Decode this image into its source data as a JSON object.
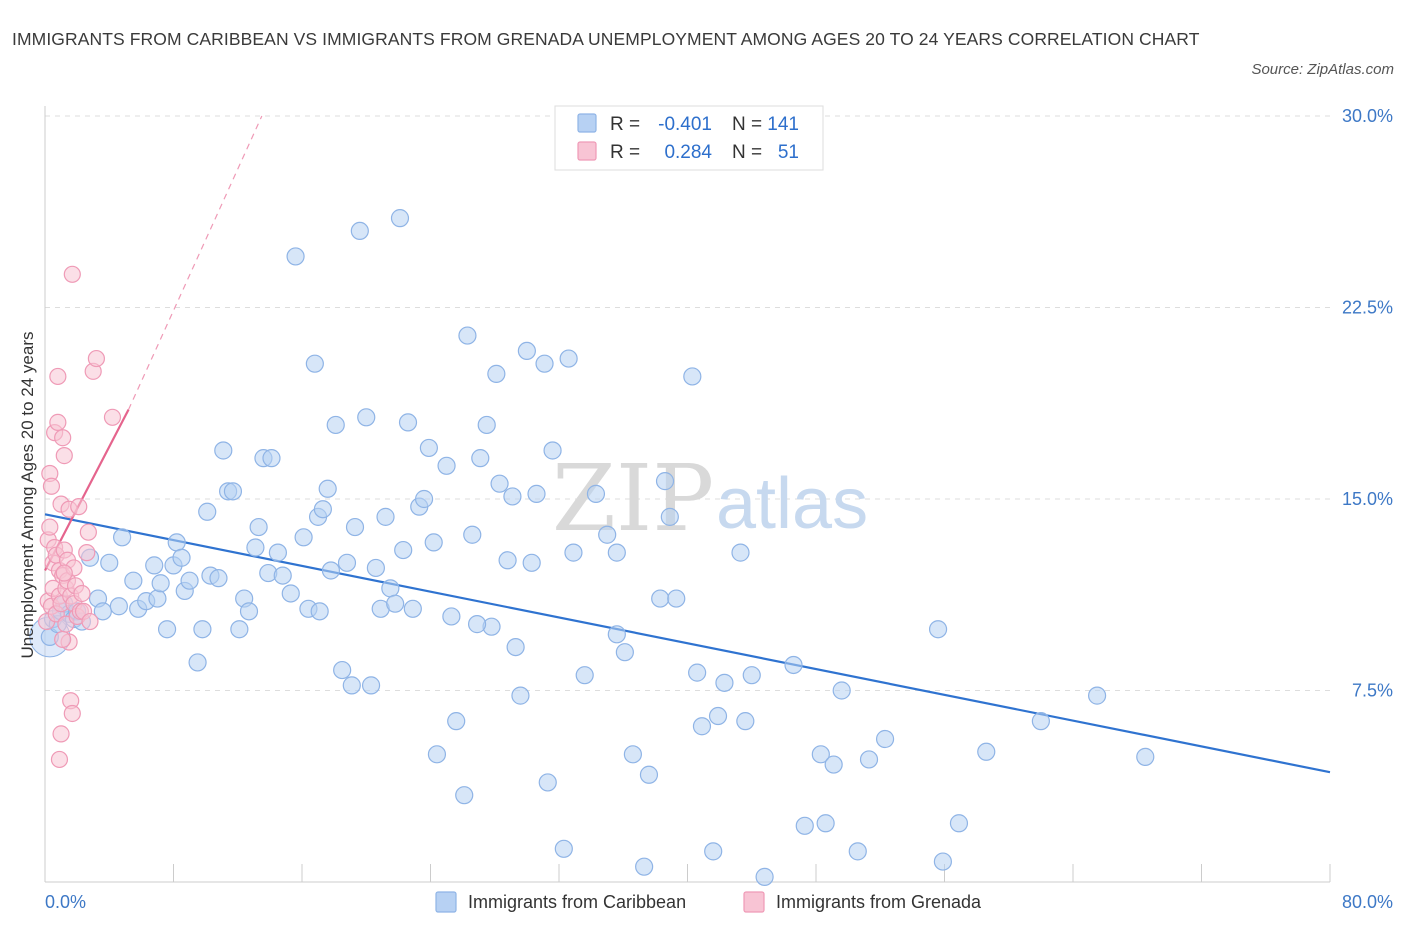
{
  "header": {
    "title": "IMMIGRANTS FROM CARIBBEAN VS IMMIGRANTS FROM GRENADA UNEMPLOYMENT AMONG AGES 20 TO 24 YEARS CORRELATION CHART",
    "source": "Source: ZipAtlas.com"
  },
  "watermark": {
    "zip": "ZIP",
    "atlas": "atlas"
  },
  "colors": {
    "caribbean_fill": "#b7d1f3",
    "caribbean_stroke": "#8fb4e6",
    "caribbean_line": "#2f73d0",
    "grenada_fill": "#f8c4d4",
    "grenada_stroke": "#ef9ab6",
    "grenada_line": "#e5648d",
    "grid": "#dddddd",
    "axis_label": "#3d78c6"
  },
  "legend_top": {
    "rows": [
      {
        "r_label": "R =",
        "r_value": "-0.401",
        "n_label": "N =",
        "n_value": "141"
      },
      {
        "r_label": "R =",
        "r_value": "0.284",
        "n_label": "N =",
        "n_value": "51"
      }
    ]
  },
  "chart_data": {
    "type": "scatter",
    "title": "IMMIGRANTS FROM CARIBBEAN VS IMMIGRANTS FROM GRENADA UNEMPLOYMENT AMONG AGES 20 TO 24 YEARS CORRELATION CHART",
    "xlabel": "",
    "ylabel": "Unemployment Among Ages 20 to 24 years",
    "xlim": [
      0,
      80
    ],
    "ylim": [
      0,
      30
    ],
    "x_tick_labels": [
      "0.0%",
      "80.0%"
    ],
    "y_ticks": [
      7.5,
      15.0,
      22.5,
      30.0
    ],
    "y_tick_labels": [
      "7.5%",
      "15.0%",
      "22.5%",
      "30.0%"
    ],
    "grid": "horizontal dashed",
    "legend_placement": "top-center and bottom",
    "series": [
      {
        "name": "Immigrants from Caribbean",
        "R": -0.401,
        "N": 141,
        "trend": {
          "x": [
            0,
            80
          ],
          "y": [
            14.4,
            4.3
          ]
        },
        "points": [
          [
            0.3,
            9.6
          ],
          [
            0.5,
            10.3
          ],
          [
            0.8,
            10.1
          ],
          [
            1.0,
            10.6
          ],
          [
            1.2,
            10.9
          ],
          [
            1.5,
            10.5
          ],
          [
            1.8,
            10.3
          ],
          [
            2.0,
            10.6
          ],
          [
            2.3,
            10.2
          ],
          [
            2.8,
            12.7
          ],
          [
            3.3,
            11.1
          ],
          [
            3.6,
            10.6
          ],
          [
            4.0,
            12.5
          ],
          [
            4.6,
            10.8
          ],
          [
            4.8,
            13.5
          ],
          [
            5.5,
            11.8
          ],
          [
            5.8,
            10.7
          ],
          [
            6.3,
            11.0
          ],
          [
            6.8,
            12.4
          ],
          [
            7.0,
            11.1
          ],
          [
            7.2,
            11.7
          ],
          [
            7.6,
            9.9
          ],
          [
            8.0,
            12.4
          ],
          [
            8.2,
            13.3
          ],
          [
            8.5,
            12.7
          ],
          [
            8.7,
            11.4
          ],
          [
            9.0,
            11.8
          ],
          [
            9.5,
            8.6
          ],
          [
            9.8,
            9.9
          ],
          [
            10.1,
            14.5
          ],
          [
            10.3,
            12.0
          ],
          [
            10.8,
            11.9
          ],
          [
            11.1,
            16.9
          ],
          [
            11.4,
            15.3
          ],
          [
            11.7,
            15.3
          ],
          [
            12.1,
            9.9
          ],
          [
            12.4,
            11.1
          ],
          [
            12.7,
            10.6
          ],
          [
            13.1,
            13.1
          ],
          [
            13.3,
            13.9
          ],
          [
            13.6,
            16.6
          ],
          [
            13.9,
            12.1
          ],
          [
            14.1,
            16.6
          ],
          [
            14.5,
            12.9
          ],
          [
            14.8,
            12.0
          ],
          [
            15.3,
            11.3
          ],
          [
            15.6,
            24.5
          ],
          [
            16.1,
            13.5
          ],
          [
            16.4,
            10.7
          ],
          [
            16.8,
            20.3
          ],
          [
            17.0,
            14.3
          ],
          [
            17.3,
            14.6
          ],
          [
            17.6,
            15.4
          ],
          [
            17.8,
            12.2
          ],
          [
            18.1,
            17.9
          ],
          [
            18.5,
            8.3
          ],
          [
            18.8,
            12.5
          ],
          [
            19.1,
            7.7
          ],
          [
            19.3,
            13.9
          ],
          [
            19.6,
            25.5
          ],
          [
            20.0,
            18.2
          ],
          [
            20.3,
            7.7
          ],
          [
            20.6,
            12.3
          ],
          [
            20.9,
            10.7
          ],
          [
            21.2,
            14.3
          ],
          [
            21.5,
            11.5
          ],
          [
            21.8,
            10.9
          ],
          [
            22.1,
            26.0
          ],
          [
            22.3,
            13.0
          ],
          [
            22.6,
            18.0
          ],
          [
            22.9,
            10.7
          ],
          [
            23.3,
            14.7
          ],
          [
            23.6,
            15.0
          ],
          [
            23.9,
            17.0
          ],
          [
            24.2,
            13.3
          ],
          [
            24.4,
            5.0
          ],
          [
            25.0,
            16.3
          ],
          [
            25.3,
            10.4
          ],
          [
            25.6,
            6.3
          ],
          [
            26.1,
            3.4
          ],
          [
            26.3,
            21.4
          ],
          [
            26.6,
            13.6
          ],
          [
            27.1,
            16.6
          ],
          [
            27.5,
            17.9
          ],
          [
            27.8,
            10.0
          ],
          [
            28.1,
            19.9
          ],
          [
            28.3,
            15.6
          ],
          [
            28.8,
            12.6
          ],
          [
            29.1,
            15.1
          ],
          [
            29.3,
            9.2
          ],
          [
            29.6,
            7.3
          ],
          [
            30.0,
            20.8
          ],
          [
            30.6,
            15.2
          ],
          [
            31.1,
            20.3
          ],
          [
            31.3,
            3.9
          ],
          [
            31.6,
            16.9
          ],
          [
            32.3,
            1.3
          ],
          [
            32.6,
            20.5
          ],
          [
            32.9,
            12.9
          ],
          [
            33.6,
            8.1
          ],
          [
            34.3,
            15.2
          ],
          [
            35.0,
            13.6
          ],
          [
            35.6,
            9.7
          ],
          [
            36.1,
            9.0
          ],
          [
            36.6,
            5.0
          ],
          [
            37.3,
            0.6
          ],
          [
            37.6,
            4.2
          ],
          [
            38.3,
            11.1
          ],
          [
            38.6,
            15.7
          ],
          [
            38.9,
            14.3
          ],
          [
            39.3,
            11.1
          ],
          [
            40.3,
            19.8
          ],
          [
            40.6,
            8.2
          ],
          [
            40.9,
            6.1
          ],
          [
            41.6,
            1.2
          ],
          [
            41.9,
            6.5
          ],
          [
            42.3,
            7.8
          ],
          [
            43.3,
            12.9
          ],
          [
            43.6,
            6.3
          ],
          [
            44.0,
            8.1
          ],
          [
            46.6,
            8.5
          ],
          [
            47.3,
            2.2
          ],
          [
            48.3,
            5.0
          ],
          [
            48.6,
            2.3
          ],
          [
            49.1,
            4.6
          ],
          [
            49.6,
            7.5
          ],
          [
            50.6,
            1.2
          ],
          [
            51.3,
            4.8
          ],
          [
            52.3,
            5.6
          ],
          [
            55.6,
            9.9
          ],
          [
            55.9,
            0.8
          ],
          [
            56.9,
            2.3
          ],
          [
            58.6,
            5.1
          ],
          [
            62.0,
            6.3
          ],
          [
            65.5,
            7.3
          ],
          [
            68.5,
            4.9
          ],
          [
            44.8,
            0.2
          ],
          [
            35.6,
            12.9
          ],
          [
            30.3,
            12.5
          ],
          [
            26.9,
            10.1
          ],
          [
            17.1,
            10.6
          ]
        ]
      },
      {
        "name": "Immigrants from Grenada",
        "R": 0.284,
        "N": 51,
        "trend": {
          "x": [
            0.0,
            5.2
          ],
          "y": [
            12.2,
            18.5
          ]
        },
        "trend_extension": {
          "x": [
            5.2,
            13.5
          ],
          "y": [
            18.5,
            30.0
          ]
        },
        "points": [
          [
            0.1,
            10.2
          ],
          [
            0.2,
            11.0
          ],
          [
            0.2,
            13.4
          ],
          [
            0.3,
            13.9
          ],
          [
            0.3,
            16.0
          ],
          [
            0.4,
            15.5
          ],
          [
            0.4,
            10.8
          ],
          [
            0.5,
            11.5
          ],
          [
            0.5,
            12.5
          ],
          [
            0.6,
            13.1
          ],
          [
            0.6,
            17.6
          ],
          [
            0.7,
            12.8
          ],
          [
            0.7,
            10.5
          ],
          [
            0.8,
            18.0
          ],
          [
            0.8,
            19.8
          ],
          [
            0.9,
            12.2
          ],
          [
            0.9,
            11.2
          ],
          [
            1.0,
            14.8
          ],
          [
            1.0,
            10.9
          ],
          [
            1.1,
            17.4
          ],
          [
            1.1,
            12.0
          ],
          [
            1.2,
            16.7
          ],
          [
            1.2,
            13.0
          ],
          [
            1.3,
            11.5
          ],
          [
            1.3,
            10.1
          ],
          [
            1.4,
            11.8
          ],
          [
            1.4,
            12.6
          ],
          [
            1.5,
            9.4
          ],
          [
            1.5,
            14.6
          ],
          [
            1.6,
            7.1
          ],
          [
            1.6,
            11.2
          ],
          [
            1.7,
            23.8
          ],
          [
            1.7,
            6.6
          ],
          [
            1.8,
            10.9
          ],
          [
            1.8,
            12.3
          ],
          [
            1.9,
            11.6
          ],
          [
            2.0,
            10.4
          ],
          [
            2.1,
            14.7
          ],
          [
            2.2,
            10.6
          ],
          [
            2.3,
            11.3
          ],
          [
            2.4,
            10.6
          ],
          [
            2.6,
            12.9
          ],
          [
            2.8,
            10.2
          ],
          [
            0.9,
            4.8
          ],
          [
            1.0,
            5.8
          ],
          [
            1.1,
            9.5
          ],
          [
            1.2,
            12.1
          ],
          [
            2.7,
            13.7
          ],
          [
            3.0,
            20.0
          ],
          [
            3.2,
            20.5
          ],
          [
            4.2,
            18.2
          ]
        ]
      }
    ]
  },
  "legend_bottom": {
    "items": [
      {
        "label": "Immigrants from Caribbean"
      },
      {
        "label": "Immigrants from Grenada"
      }
    ]
  }
}
